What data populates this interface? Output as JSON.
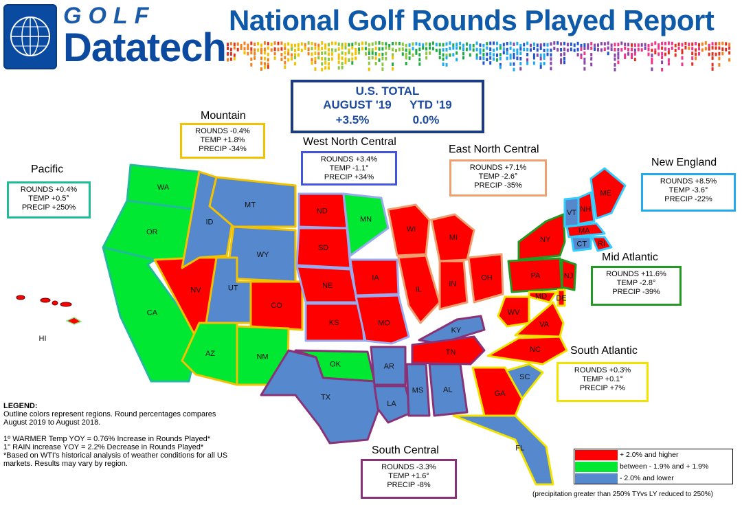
{
  "colors": {
    "up": "#ff0000",
    "flat": "#00e832",
    "down": "#5588cc"
  },
  "header": {
    "logo_top": "GOLF",
    "logo_main": "Datatech",
    "title": "National Golf Rounds Played Report"
  },
  "us_total": {
    "title": "U.S. TOTAL",
    "period1": "AUGUST '19",
    "period2": "YTD  '19",
    "value1": "+3.5%",
    "value2": "0.0%"
  },
  "regions": [
    {
      "id": "pacific",
      "name": "Pacific",
      "border": "#22bb99",
      "lines": [
        "ROUNDS +0.4%",
        "TEMP +0.5°",
        "PRECIP +250%"
      ]
    },
    {
      "id": "mountain",
      "name": "Mountain",
      "border": "#f2c200",
      "lines": [
        "ROUNDS -0.4%",
        "TEMP +1.8%",
        "PRECIP -34%"
      ]
    },
    {
      "id": "wnc",
      "name": "West North Central",
      "border": "#4455dd",
      "lines": [
        "ROUNDS +3.4%",
        "TEMP  -1.1°",
        "PRECIP +34%"
      ]
    },
    {
      "id": "enc",
      "name": "East North Central",
      "border": "#f0a070",
      "lines": [
        "ROUNDS +7.1%",
        "TEMP -2.6°",
        "PRECIP -35%"
      ]
    },
    {
      "id": "ne",
      "name": "New England",
      "border": "#22aaee",
      "lines": [
        "ROUNDS +8.5%",
        "TEMP  -3.6°",
        "PRECIP  -22%"
      ]
    },
    {
      "id": "ma",
      "name": "Mid Atlantic",
      "border": "#229922",
      "lines": [
        "ROUNDS +11.6%",
        "TEMP  -2.8°",
        "PRECIP -39%"
      ]
    },
    {
      "id": "sa",
      "name": "South Atlantic",
      "border": "#f2e200",
      "lines": [
        "ROUNDS +0.3%",
        "TEMP  +0.1°",
        "PRECIP +7%"
      ]
    },
    {
      "id": "sc",
      "name": "South Central",
      "border": "#883377",
      "lines": [
        "ROUNDS  -3.3%",
        "TEMP  +1.6°",
        "PRECIP  -8%"
      ]
    }
  ],
  "states": [
    {
      "abbr": "WA",
      "status": "flat"
    },
    {
      "abbr": "OR",
      "status": "flat"
    },
    {
      "abbr": "CA",
      "status": "flat"
    },
    {
      "abbr": "HI",
      "status": "up"
    },
    {
      "abbr": "NV",
      "status": "up"
    },
    {
      "abbr": "ID",
      "status": "down"
    },
    {
      "abbr": "MT",
      "status": "down"
    },
    {
      "abbr": "WY",
      "status": "down"
    },
    {
      "abbr": "UT",
      "status": "down"
    },
    {
      "abbr": "CO",
      "status": "up"
    },
    {
      "abbr": "AZ",
      "status": "flat"
    },
    {
      "abbr": "NM",
      "status": "flat"
    },
    {
      "abbr": "ND",
      "status": "up"
    },
    {
      "abbr": "SD",
      "status": "up"
    },
    {
      "abbr": "NE",
      "status": "up"
    },
    {
      "abbr": "KS",
      "status": "up"
    },
    {
      "abbr": "MN",
      "status": "flat"
    },
    {
      "abbr": "IA",
      "status": "up"
    },
    {
      "abbr": "MO",
      "status": "up"
    },
    {
      "abbr": "WI",
      "status": "up"
    },
    {
      "abbr": "MI",
      "status": "up"
    },
    {
      "abbr": "IL",
      "status": "up"
    },
    {
      "abbr": "IN",
      "status": "up"
    },
    {
      "abbr": "OH",
      "status": "up"
    },
    {
      "abbr": "KY",
      "status": "down"
    },
    {
      "abbr": "TN",
      "status": "up"
    },
    {
      "abbr": "OK",
      "status": "flat"
    },
    {
      "abbr": "TX",
      "status": "down"
    },
    {
      "abbr": "AR",
      "status": "down"
    },
    {
      "abbr": "LA",
      "status": "down"
    },
    {
      "abbr": "MS",
      "status": "down"
    },
    {
      "abbr": "AL",
      "status": "down"
    },
    {
      "abbr": "GA",
      "status": "up"
    },
    {
      "abbr": "FL",
      "status": "down"
    },
    {
      "abbr": "SC",
      "status": "down"
    },
    {
      "abbr": "NC",
      "status": "up"
    },
    {
      "abbr": "VA",
      "status": "up"
    },
    {
      "abbr": "WV",
      "status": "up"
    },
    {
      "abbr": "MD",
      "status": "up"
    },
    {
      "abbr": "DE",
      "status": "up"
    },
    {
      "abbr": "PA",
      "status": "up"
    },
    {
      "abbr": "NJ",
      "status": "up"
    },
    {
      "abbr": "NY",
      "status": "up"
    },
    {
      "abbr": "CT",
      "status": "down"
    },
    {
      "abbr": "RI",
      "status": "up"
    },
    {
      "abbr": "MA",
      "status": "up"
    },
    {
      "abbr": "VT",
      "status": "down"
    },
    {
      "abbr": "NH",
      "status": "up"
    },
    {
      "abbr": "ME",
      "status": "up"
    }
  ],
  "legend": {
    "title": "LEGEND:",
    "line1": "Outline colors represent regions. Round percentages compares",
    "line2": "August 2019 to August  2018.",
    "line3": "1º WARMER Temp YOY  = 0.76% Increase in Rounds Played*",
    "line4": "1\" RAIN increase YOY = 2.2% Decrease in Rounds Played*",
    "line5": "*Based on WTI's historical analysis of weather conditions for all US",
    "line6": "markets. Results may vary by region."
  },
  "key": [
    {
      "status": "up",
      "label": "+ 2.0% and higher"
    },
    {
      "status": "flat",
      "label": "between - 1.9% and + 1.9%"
    },
    {
      "status": "down",
      "label": "- 2.0% and lower"
    }
  ],
  "precip_note": "(precipitation greater than 250% TYvs LY reduced to 250%)"
}
